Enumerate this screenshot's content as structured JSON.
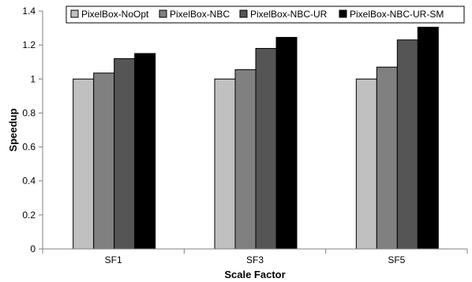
{
  "chart_data": {
    "type": "bar",
    "title": "",
    "xlabel": "Scale Factor",
    "ylabel": "Speedup",
    "categories": [
      "SF1",
      "SF3",
      "SF5"
    ],
    "series": [
      {
        "name": "PixelBox-NoOpt",
        "values": [
          1.0,
          1.0,
          1.0
        ],
        "color": "#c0c0c0"
      },
      {
        "name": "PixelBox-NBC",
        "values": [
          1.035,
          1.055,
          1.07
        ],
        "color": "#808080"
      },
      {
        "name": "PixelBox-NBC-UR",
        "values": [
          1.12,
          1.18,
          1.23
        ],
        "color": "#555555"
      },
      {
        "name": "PixelBox-NBC-UR-SM",
        "values": [
          1.15,
          1.245,
          1.305
        ],
        "color": "#000000"
      }
    ],
    "ylim": [
      0,
      1.4
    ],
    "yticks": [
      "0",
      "0.2",
      "0.4",
      "0.6",
      "0.8",
      "1",
      "1.2",
      "1.4"
    ],
    "ytick_values": [
      0,
      0.2,
      0.4,
      0.6,
      0.8,
      1.0,
      1.2,
      1.4
    ],
    "grid": false,
    "legend_position": "top"
  }
}
